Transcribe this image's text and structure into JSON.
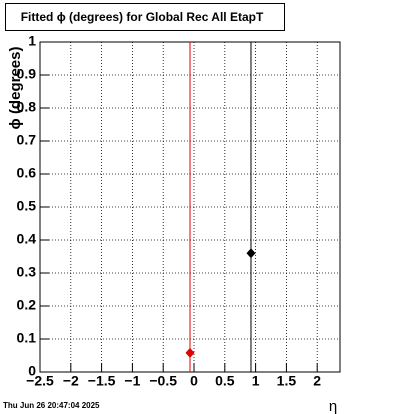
{
  "chart_data": {
    "type": "scatter",
    "title": "Fitted ϕ (degrees) for Global Rec All EtapT",
    "y_label": "ϕ (degrees)",
    "x_label": "η",
    "footer": "Thu Jun 26 20:47:04 2025",
    "xlim": [
      -2.5,
      2.37
    ],
    "ylim": [
      0,
      1
    ],
    "xticks": [
      {
        "value": -2.5,
        "label": "−2.5"
      },
      {
        "value": -2,
        "label": "−2"
      },
      {
        "value": -1.5,
        "label": "−1.5"
      },
      {
        "value": -1,
        "label": "−1"
      },
      {
        "value": -0.5,
        "label": "−0.5"
      },
      0,
      0.5,
      1,
      1.5,
      2
    ],
    "yticks": [
      0,
      0.1,
      0.2,
      0.3,
      0.4,
      0.5,
      0.6,
      0.7,
      0.8,
      0.9,
      1
    ],
    "grid": true,
    "series": [
      {
        "color": "#e00000",
        "x": [
          -0.065
        ],
        "values": [
          0.058
        ]
      },
      {
        "color": "#000000",
        "x": [
          0.925
        ],
        "values": [
          0.36
        ]
      }
    ]
  }
}
